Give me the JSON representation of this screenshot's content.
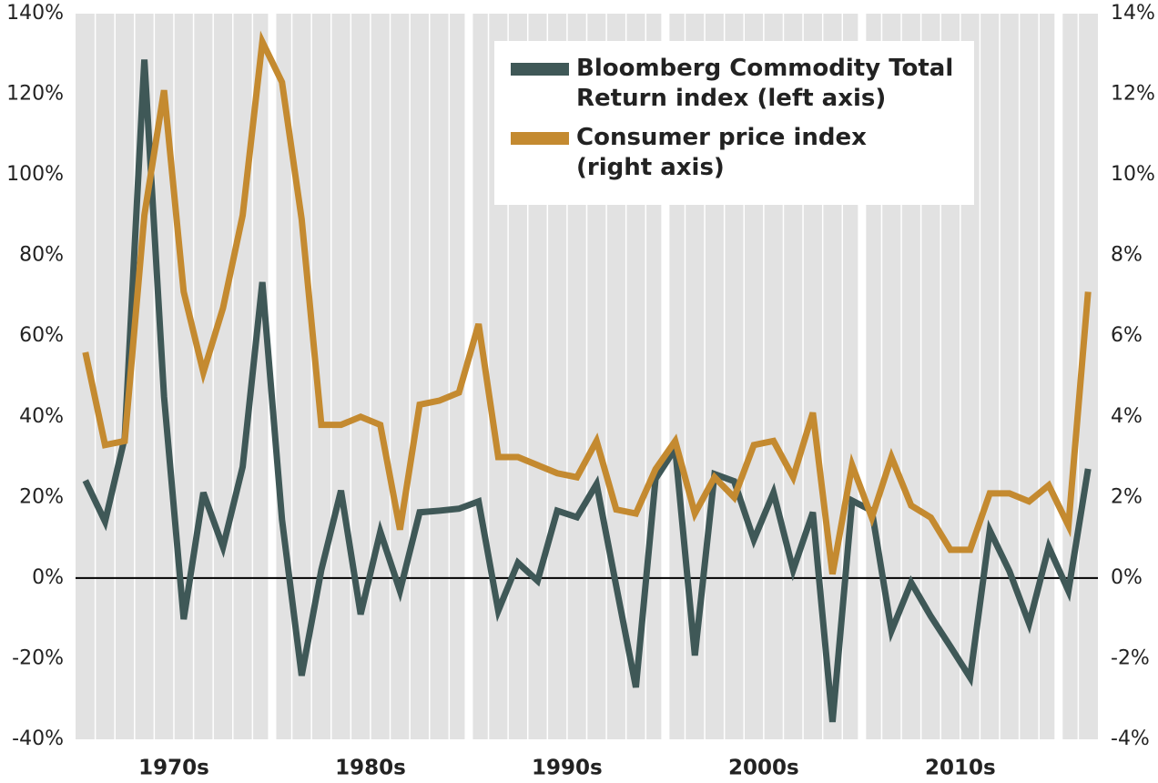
{
  "chart_data": {
    "type": "line",
    "x": [
      1970,
      1971,
      1972,
      1973,
      1974,
      1975,
      1976,
      1977,
      1978,
      1979,
      1980,
      1981,
      1982,
      1983,
      1984,
      1985,
      1986,
      1987,
      1988,
      1989,
      1990,
      1991,
      1992,
      1993,
      1994,
      1995,
      1996,
      1997,
      1998,
      1999,
      2000,
      2001,
      2002,
      2003,
      2004,
      2005,
      2006,
      2007,
      2008,
      2009,
      2010,
      2011,
      2012,
      2013,
      2014,
      2015,
      2016,
      2017,
      2018,
      2019,
      2020,
      2021
    ],
    "xlim": [
      1969.5,
      2021.5
    ],
    "xticks": [
      {
        "value": 1974.5,
        "label": "1970s"
      },
      {
        "value": 1984.5,
        "label": "1980s"
      },
      {
        "value": 1994.5,
        "label": "1990s"
      },
      {
        "value": 2004.5,
        "label": "2000s"
      },
      {
        "value": 2014.5,
        "label": "2010s"
      }
    ],
    "ylim": [
      -40,
      140
    ],
    "yticks": [
      {
        "value": -40,
        "label": "-40%"
      },
      {
        "value": -20,
        "label": "-20%"
      },
      {
        "value": 0,
        "label": "0%"
      },
      {
        "value": 20,
        "label": "20%"
      },
      {
        "value": 40,
        "label": "40%"
      },
      {
        "value": 60,
        "label": "60%"
      },
      {
        "value": 80,
        "label": "80%"
      },
      {
        "value": 100,
        "label": "100%"
      },
      {
        "value": 120,
        "label": "120%"
      },
      {
        "value": 140,
        "label": "140%"
      }
    ],
    "y2lim": [
      -4,
      14
    ],
    "y2ticks": [
      {
        "value": -4,
        "label": "-4%"
      },
      {
        "value": -2,
        "label": "-2%"
      },
      {
        "value": 0,
        "label": "0%"
      },
      {
        "value": 2,
        "label": "2%"
      },
      {
        "value": 4,
        "label": "4%"
      },
      {
        "value": 6,
        "label": "6%"
      },
      {
        "value": 8,
        "label": "8%"
      },
      {
        "value": 10,
        "label": "10%"
      },
      {
        "value": 12,
        "label": "12%"
      },
      {
        "value": 14,
        "label": "14%"
      }
    ],
    "series": [
      {
        "name": "Bloomberg Commodity Total\nReturn index (left axis)",
        "color": "#3f5857",
        "axis": "y",
        "values": [
          24.2,
          14.0,
          34.8,
          128.6,
          45,
          -10.2,
          21.2,
          7.7,
          27.6,
          73.4,
          14.5,
          -24.2,
          2.0,
          21.7,
          -9.0,
          11.5,
          -3.2,
          16.3,
          16.7,
          17.2,
          19.0,
          -8.1,
          3.8,
          -0.7,
          16.7,
          15.1,
          23.3,
          -2,
          -27.1,
          24.6,
          32.1,
          -19.2,
          25.8,
          24.0,
          9.5,
          21.2,
          2.0,
          16.3,
          -35.7,
          19.2,
          16.7,
          -13.1,
          -1.1,
          -9.5,
          -17,
          -24.7,
          11.8,
          1.7,
          -11.3,
          7.7,
          -3.2,
          27.1
        ]
      },
      {
        "name": "Consumer price index\n(right axis)",
        "color": "#c48a30",
        "axis": "y2",
        "values": [
          5.6,
          3.3,
          3.4,
          9.0,
          12.1,
          7.1,
          5.1,
          6.7,
          9.0,
          13.3,
          12.3,
          8.9,
          3.8,
          3.8,
          4.0,
          3.8,
          1.2,
          4.3,
          4.4,
          4.6,
          6.3,
          3.0,
          3.0,
          2.8,
          2.6,
          2.5,
          3.4,
          1.7,
          1.6,
          2.7,
          3.4,
          1.6,
          2.5,
          2.0,
          3.3,
          3.4,
          2.5,
          4.1,
          0.1,
          2.8,
          1.5,
          3.0,
          1.8,
          1.5,
          0.7,
          0.7,
          2.1,
          2.1,
          1.9,
          2.3,
          1.3,
          7.1
        ]
      }
    ],
    "zero_line": true
  }
}
